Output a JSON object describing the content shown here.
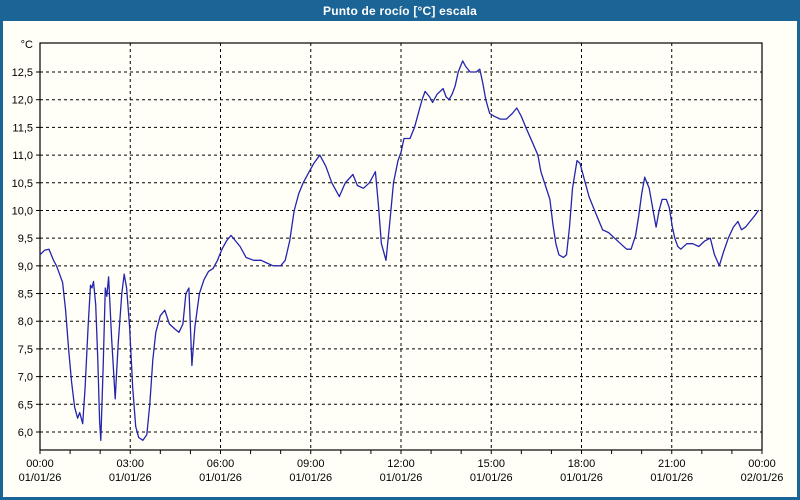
{
  "window": {
    "title": "Punto de rocío [°C] escala"
  },
  "colors": {
    "frame": "#1a6496",
    "title_text": "#ffffff",
    "background": "#fffff8",
    "line": "#2424ad",
    "grid": "#000000",
    "text": "#000000"
  },
  "chart_data": {
    "type": "line",
    "title": "Punto de rocío [°C] escala",
    "grid": "dashed",
    "legend": "none",
    "y_axis": {
      "unit": "°C",
      "min": 6.0,
      "max": 12.5,
      "step": 0.5,
      "decimal_separator": ",",
      "tick_labels": [
        "12,5",
        "12,0",
        "11,5",
        "11,0",
        "10,5",
        "10,0",
        "9,5",
        "9,0",
        "8,5",
        "8,0",
        "7,5",
        "7,0",
        "6,5",
        "6,0"
      ]
    },
    "x_axis": {
      "range_hours": [
        0,
        24
      ],
      "major_tick_hours": 3,
      "minor_tick_hours": 1,
      "tick_labels": [
        {
          "time": "00:00",
          "date": "01/01/26"
        },
        {
          "time": "03:00",
          "date": "01/01/26"
        },
        {
          "time": "06:00",
          "date": "01/01/26"
        },
        {
          "time": "09:00",
          "date": "01/01/26"
        },
        {
          "time": "12:00",
          "date": "01/01/26"
        },
        {
          "time": "15:00",
          "date": "01/01/26"
        },
        {
          "time": "18:00",
          "date": "01/01/26"
        },
        {
          "time": "21:00",
          "date": "01/01/26"
        },
        {
          "time": "00:00",
          "date": "02/01/26"
        }
      ]
    },
    "series": [
      {
        "name": "Punto de rocío [°C]",
        "color": "#2424ad",
        "points": [
          [
            0.0,
            9.2
          ],
          [
            0.15,
            9.28
          ],
          [
            0.3,
            9.3
          ],
          [
            0.45,
            9.1
          ],
          [
            0.55,
            9.0
          ],
          [
            0.65,
            8.85
          ],
          [
            0.75,
            8.7
          ],
          [
            0.85,
            8.2
          ],
          [
            0.95,
            7.5
          ],
          [
            1.05,
            6.9
          ],
          [
            1.15,
            6.45
          ],
          [
            1.25,
            6.25
          ],
          [
            1.32,
            6.35
          ],
          [
            1.42,
            6.15
          ],
          [
            1.5,
            6.8
          ],
          [
            1.6,
            7.9
          ],
          [
            1.68,
            8.65
          ],
          [
            1.73,
            8.6
          ],
          [
            1.78,
            8.72
          ],
          [
            1.85,
            8.3
          ],
          [
            1.92,
            7.3
          ],
          [
            1.98,
            6.2
          ],
          [
            2.02,
            5.85
          ],
          [
            2.1,
            7.2
          ],
          [
            2.17,
            8.6
          ],
          [
            2.22,
            8.45
          ],
          [
            2.28,
            8.8
          ],
          [
            2.38,
            7.7
          ],
          [
            2.5,
            6.6
          ],
          [
            2.6,
            7.6
          ],
          [
            2.72,
            8.5
          ],
          [
            2.8,
            8.85
          ],
          [
            2.88,
            8.6
          ],
          [
            2.98,
            7.9
          ],
          [
            3.08,
            6.8
          ],
          [
            3.18,
            6.1
          ],
          [
            3.28,
            5.9
          ],
          [
            3.42,
            5.85
          ],
          [
            3.55,
            5.95
          ],
          [
            3.65,
            6.5
          ],
          [
            3.75,
            7.3
          ],
          [
            3.85,
            7.8
          ],
          [
            4.0,
            8.1
          ],
          [
            4.15,
            8.2
          ],
          [
            4.3,
            7.95
          ],
          [
            4.5,
            7.85
          ],
          [
            4.62,
            7.8
          ],
          [
            4.75,
            7.95
          ],
          [
            4.85,
            8.5
          ],
          [
            4.95,
            8.6
          ],
          [
            5.05,
            7.2
          ],
          [
            5.15,
            7.9
          ],
          [
            5.3,
            8.5
          ],
          [
            5.45,
            8.75
          ],
          [
            5.6,
            8.9
          ],
          [
            5.75,
            8.95
          ],
          [
            5.9,
            9.1
          ],
          [
            6.05,
            9.3
          ],
          [
            6.2,
            9.45
          ],
          [
            6.35,
            9.55
          ],
          [
            6.5,
            9.45
          ],
          [
            6.65,
            9.35
          ],
          [
            6.85,
            9.15
          ],
          [
            7.1,
            9.1
          ],
          [
            7.35,
            9.1
          ],
          [
            7.55,
            9.05
          ],
          [
            7.75,
            9.0
          ],
          [
            8.0,
            9.0
          ],
          [
            8.15,
            9.1
          ],
          [
            8.3,
            9.45
          ],
          [
            8.45,
            10.0
          ],
          [
            8.6,
            10.3
          ],
          [
            8.75,
            10.5
          ],
          [
            8.95,
            10.7
          ],
          [
            9.1,
            10.85
          ],
          [
            9.3,
            11.0
          ],
          [
            9.5,
            10.8
          ],
          [
            9.7,
            10.5
          ],
          [
            9.95,
            10.25
          ],
          [
            10.15,
            10.5
          ],
          [
            10.4,
            10.65
          ],
          [
            10.55,
            10.45
          ],
          [
            10.75,
            10.4
          ],
          [
            10.95,
            10.5
          ],
          [
            11.1,
            10.65
          ],
          [
            11.15,
            10.7
          ],
          [
            11.25,
            10.1
          ],
          [
            11.35,
            9.4
          ],
          [
            11.5,
            9.1
          ],
          [
            11.62,
            9.75
          ],
          [
            11.75,
            10.5
          ],
          [
            11.9,
            10.9
          ],
          [
            12.0,
            11.05
          ],
          [
            12.1,
            11.3
          ],
          [
            12.3,
            11.3
          ],
          [
            12.45,
            11.5
          ],
          [
            12.6,
            11.8
          ],
          [
            12.7,
            12.0
          ],
          [
            12.8,
            12.15
          ],
          [
            12.95,
            12.05
          ],
          [
            13.05,
            11.95
          ],
          [
            13.2,
            12.1
          ],
          [
            13.4,
            12.2
          ],
          [
            13.5,
            12.05
          ],
          [
            13.6,
            12.0
          ],
          [
            13.7,
            12.1
          ],
          [
            13.8,
            12.25
          ],
          [
            13.9,
            12.5
          ],
          [
            14.05,
            12.7
          ],
          [
            14.15,
            12.6
          ],
          [
            14.3,
            12.5
          ],
          [
            14.5,
            12.5
          ],
          [
            14.62,
            12.55
          ],
          [
            14.72,
            12.3
          ],
          [
            14.82,
            12.0
          ],
          [
            14.95,
            11.75
          ],
          [
            15.1,
            11.7
          ],
          [
            15.3,
            11.65
          ],
          [
            15.5,
            11.65
          ],
          [
            15.7,
            11.75
          ],
          [
            15.85,
            11.85
          ],
          [
            16.0,
            11.7
          ],
          [
            16.15,
            11.5
          ],
          [
            16.35,
            11.25
          ],
          [
            16.55,
            11.0
          ],
          [
            16.65,
            10.7
          ],
          [
            16.8,
            10.45
          ],
          [
            16.95,
            10.2
          ],
          [
            17.05,
            9.75
          ],
          [
            17.15,
            9.4
          ],
          [
            17.25,
            9.2
          ],
          [
            17.4,
            9.15
          ],
          [
            17.5,
            9.2
          ],
          [
            17.6,
            9.7
          ],
          [
            17.7,
            10.4
          ],
          [
            17.85,
            10.9
          ],
          [
            17.95,
            10.85
          ],
          [
            18.1,
            10.55
          ],
          [
            18.25,
            10.25
          ],
          [
            18.4,
            10.05
          ],
          [
            18.55,
            9.85
          ],
          [
            18.7,
            9.65
          ],
          [
            18.9,
            9.6
          ],
          [
            19.1,
            9.5
          ],
          [
            19.3,
            9.4
          ],
          [
            19.5,
            9.3
          ],
          [
            19.65,
            9.3
          ],
          [
            19.8,
            9.55
          ],
          [
            19.9,
            9.9
          ],
          [
            20.0,
            10.3
          ],
          [
            20.1,
            10.6
          ],
          [
            20.25,
            10.4
          ],
          [
            20.38,
            10.0
          ],
          [
            20.48,
            9.7
          ],
          [
            20.58,
            10.0
          ],
          [
            20.68,
            10.2
          ],
          [
            20.82,
            10.2
          ],
          [
            20.92,
            10.05
          ],
          [
            21.02,
            9.7
          ],
          [
            21.1,
            9.5
          ],
          [
            21.2,
            9.35
          ],
          [
            21.3,
            9.3
          ],
          [
            21.5,
            9.4
          ],
          [
            21.7,
            9.4
          ],
          [
            21.9,
            9.35
          ],
          [
            22.1,
            9.45
          ],
          [
            22.28,
            9.5
          ],
          [
            22.42,
            9.2
          ],
          [
            22.58,
            9.0
          ],
          [
            22.72,
            9.25
          ],
          [
            22.88,
            9.5
          ],
          [
            23.05,
            9.7
          ],
          [
            23.2,
            9.8
          ],
          [
            23.32,
            9.65
          ],
          [
            23.45,
            9.7
          ],
          [
            23.6,
            9.8
          ],
          [
            23.75,
            9.9
          ],
          [
            23.88,
            10.0
          ]
        ]
      }
    ]
  }
}
